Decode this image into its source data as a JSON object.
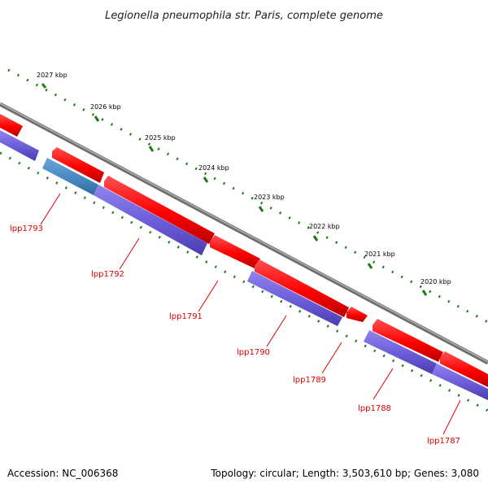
{
  "title": "Legionella pneumophila str. Paris, complete genome",
  "footer": {
    "accession": "Accession: NC_006368",
    "summary": "Topology: circular; Length: 3,503,610 bp; Genes: 3,080"
  },
  "kbp_labels": [
    "2027 kbp",
    "2026 kbp",
    "2025 kbp",
    "2024 kbp",
    "2023 kbp",
    "2022 kbp",
    "2021 kbp",
    "2020 kbp"
  ],
  "genes": [
    "lpp1793",
    "lpp1792",
    "lpp1791",
    "lpp1790",
    "lpp1789",
    "lpp1788",
    "lpp1787"
  ],
  "colors": {
    "backbone": "#8a8a8a",
    "forward_cds": "#ff1a1a",
    "reverse_cds": "#6a5cd8",
    "highlight_cds": "#4a88c2",
    "ticks": "#1a7a1a",
    "gene_label": "#e00000"
  }
}
